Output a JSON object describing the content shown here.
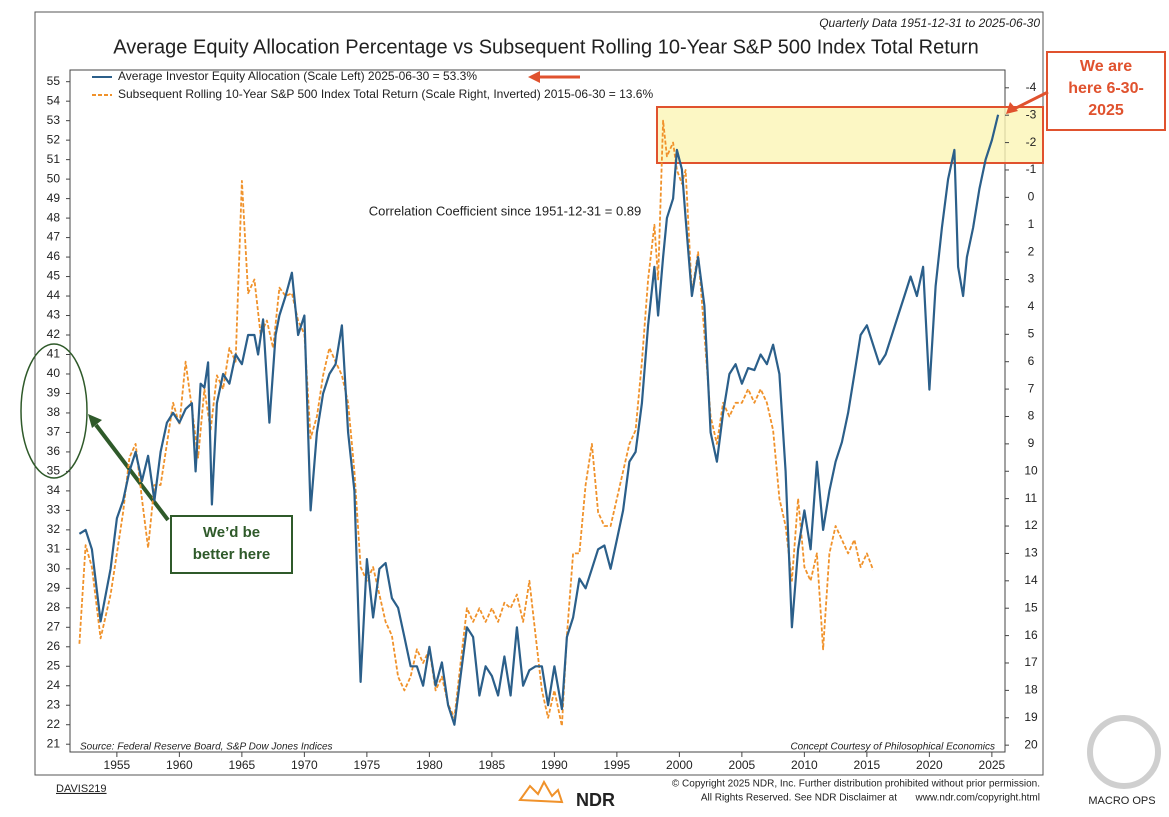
{
  "chart_data": {
    "type": "line",
    "title": "Average Equity Allocation Percentage vs Subsequent Rolling 10-Year S&P 500 Index Total Return",
    "subtitle": "Quarterly Data 1951-12-31 to 2025-06-30",
    "correlation_note": "Correlation Coefficient since 1951-12-31 = 0.89",
    "source": "Source:  Federal Reserve Board, S&P Dow Jones Indices",
    "credit": "Concept Courtesy of Philosophical Economics",
    "copyright": "© Copyright 2025 NDR, Inc. Further distribution prohibited without prior permission.",
    "disclaimer": "All Rights Reserved. See NDR Disclaimer at",
    "disclaimer_link": "www.ndr.com/copyright.html",
    "chart_id": "DAVIS219",
    "logo": "NDR",
    "watermark": "MACRO OPS",
    "annotations": [
      "We are here 6-30-2025",
      "We’d be better here"
    ],
    "xlim": [
      1951.25,
      2026.05
    ],
    "xticks": [
      1955,
      1960,
      1965,
      1970,
      1975,
      1980,
      1985,
      1990,
      1995,
      2000,
      2005,
      2010,
      2015,
      2020,
      2025
    ],
    "ylim": [
      20.6,
      55.6
    ],
    "yticks": [
      21,
      22,
      23,
      24,
      25,
      26,
      27,
      28,
      29,
      30,
      31,
      32,
      33,
      34,
      35,
      36,
      37,
      38,
      39,
      40,
      41,
      42,
      43,
      44,
      45,
      46,
      47,
      48,
      49,
      50,
      51,
      52,
      53,
      54,
      55
    ],
    "y2lim": [
      -4.65,
      20.25
    ],
    "y2_inverted": true,
    "y2ticks": [
      -4,
      -3,
      -2,
      -1,
      0,
      1,
      2,
      3,
      4,
      5,
      6,
      7,
      8,
      9,
      10,
      11,
      12,
      13,
      14,
      15,
      16,
      17,
      18,
      19,
      20
    ],
    "series": [
      {
        "name": "Average Investor Equity Allocation (Scale Left) 2025-06-30 = 53.3%",
        "color": "#2b5f8a",
        "dashed": false,
        "x": [
          1952,
          1952.5,
          1953,
          1953.7,
          1954.5,
          1955,
          1955.5,
          1956,
          1956.5,
          1957,
          1957.5,
          1958,
          1958.5,
          1959,
          1959.5,
          1960,
          1960.5,
          1961,
          1961.3,
          1961.7,
          1962,
          1962.3,
          1962.6,
          1963,
          1963.5,
          1964,
          1964.5,
          1965,
          1965.5,
          1966,
          1966.3,
          1966.7,
          1967.2,
          1967.7,
          1968,
          1968.5,
          1969,
          1969.5,
          1970,
          1970.5,
          1971,
          1971.5,
          1972,
          1972.5,
          1973,
          1973.5,
          1974,
          1974.5,
          1975,
          1975.5,
          1976,
          1976.5,
          1977,
          1977.5,
          1978,
          1978.5,
          1979,
          1979.5,
          1980,
          1980.5,
          1981,
          1981.5,
          1982,
          1982.5,
          1983,
          1983.5,
          1984,
          1984.5,
          1985,
          1985.5,
          1986,
          1986.5,
          1987,
          1987.5,
          1988,
          1988.5,
          1989,
          1989.5,
          1990,
          1990.6,
          1991,
          1991.5,
          1992,
          1992.5,
          1993,
          1993.5,
          1994,
          1994.5,
          1995,
          1995.5,
          1996,
          1996.5,
          1997,
          1997.5,
          1998,
          1998.3,
          1998.7,
          1999,
          1999.5,
          1999.8,
          2000.2,
          2000.5,
          2001,
          2001.5,
          2002,
          2002.5,
          2003,
          2003.5,
          2004,
          2004.5,
          2005,
          2005.5,
          2006,
          2006.5,
          2007,
          2007.5,
          2008,
          2008.5,
          2009,
          2009.5,
          2010,
          2010.5,
          2011,
          2011.5,
          2012,
          2012.5,
          2013,
          2013.5,
          2014,
          2014.5,
          2015,
          2015.5,
          2016,
          2016.5,
          2017,
          2017.5,
          2018,
          2018.5,
          2019,
          2019.5,
          2020,
          2020.5,
          2021,
          2021.5,
          2022,
          2022.3,
          2022.7,
          2023,
          2023.5,
          2024,
          2024.5,
          2025,
          2025.5
        ],
        "values": [
          31.8,
          32,
          31,
          27.3,
          30,
          32.6,
          33.5,
          35,
          36,
          34.5,
          35.8,
          33.5,
          36,
          37.5,
          38,
          37.5,
          38.2,
          38.5,
          35,
          39.5,
          39.3,
          40.6,
          33.3,
          38.5,
          40,
          39.5,
          41,
          40.5,
          42,
          42,
          41,
          42.8,
          37.5,
          42,
          43,
          44,
          45.2,
          42,
          43,
          33,
          37,
          39,
          40,
          40.5,
          42.5,
          37,
          34,
          24.2,
          30.5,
          27.5,
          30,
          30.3,
          28.5,
          28,
          26.5,
          25,
          25,
          24,
          26,
          24,
          25.2,
          23,
          22,
          24.5,
          27,
          26.5,
          23.5,
          25,
          24.5,
          23.5,
          25.5,
          23.5,
          27,
          24,
          24.8,
          25,
          25,
          23,
          25,
          22.8,
          26.5,
          27.5,
          29.5,
          29,
          30,
          31,
          31.2,
          30,
          31.5,
          33,
          35.5,
          36,
          38.5,
          42.5,
          45.5,
          43,
          46,
          48,
          49,
          51.5,
          50.5,
          48,
          44,
          46,
          43.5,
          37,
          35.5,
          38,
          40,
          40.5,
          39.5,
          40.3,
          40.2,
          41,
          40.5,
          41.5,
          40,
          35,
          27,
          31,
          33,
          31,
          35.5,
          32,
          34,
          35.5,
          36.5,
          38,
          40,
          42,
          42.5,
          41.5,
          40.5,
          41,
          42,
          43,
          44,
          45,
          44,
          45.5,
          39.2,
          44.5,
          47.5,
          50,
          51.5,
          45.5,
          44,
          46,
          47.5,
          49.5,
          51,
          52,
          53.3
        ]
      },
      {
        "name": "Subsequent Rolling 10-Year S&P 500 Index Total Return (Scale Right, Inverted) 2015-06-30 = 13.6%",
        "color": "#f0922b",
        "dashed": true,
        "axis": "y2",
        "x": [
          1952,
          1952.5,
          1953,
          1953.7,
          1954.5,
          1955,
          1955.5,
          1956,
          1956.5,
          1957,
          1957.5,
          1958,
          1958.5,
          1959,
          1959.5,
          1960,
          1960.5,
          1961,
          1961.5,
          1962,
          1962.5,
          1963,
          1963.5,
          1964,
          1964.5,
          1965,
          1965.5,
          1966,
          1966.5,
          1967,
          1967.5,
          1968,
          1968.5,
          1969,
          1969.5,
          1970,
          1970.5,
          1971,
          1971.5,
          1972,
          1972.5,
          1973,
          1973.5,
          1974,
          1974.5,
          1975,
          1975.5,
          1976,
          1976.5,
          1977,
          1977.5,
          1978,
          1978.5,
          1979,
          1979.5,
          1980,
          1980.5,
          1981,
          1981.5,
          1982,
          1982.5,
          1983,
          1983.5,
          1984,
          1984.5,
          1985,
          1985.5,
          1986,
          1986.5,
          1987,
          1987.5,
          1988,
          1988.5,
          1989,
          1989.5,
          1990,
          1990.6,
          1991,
          1991.5,
          1992,
          1992.5,
          1993,
          1993.5,
          1994,
          1994.5,
          1995,
          1995.5,
          1996,
          1996.5,
          1997,
          1997.5,
          1998,
          1998.3,
          1998.7,
          1999,
          1999.5,
          1999.8,
          2000.2,
          2000.5,
          2001,
          2001.5,
          2002,
          2002.5,
          2003,
          2003.5,
          2004,
          2004.5,
          2005,
          2005.5,
          2006,
          2006.5,
          2007,
          2007.5,
          2008,
          2008.5,
          2009,
          2009.5,
          2010,
          2010.5,
          2011,
          2011.5,
          2012,
          2012.5,
          2013,
          2013.5,
          2014,
          2014.5,
          2015,
          2015.5
        ],
        "values": [
          16.3,
          12.7,
          13.5,
          16.1,
          14.5,
          13,
          11.5,
          9.5,
          9,
          11,
          12.8,
          10.5,
          10.5,
          9,
          7.5,
          8.3,
          6,
          7.7,
          9.5,
          7,
          8.5,
          6.5,
          7,
          5.5,
          6,
          -0.6,
          3.5,
          3,
          5,
          4.5,
          5.5,
          3.3,
          3.6,
          3.5,
          4.5,
          5,
          8.8,
          8,
          6.5,
          5.5,
          6,
          6.5,
          7.5,
          10,
          13.5,
          14,
          13.5,
          14.5,
          15.5,
          16,
          17.5,
          18,
          17.5,
          16.5,
          17,
          16.5,
          18,
          17.5,
          18.5,
          19,
          17,
          15,
          15.5,
          15,
          15.5,
          15,
          15.5,
          14.8,
          15,
          14.5,
          15.5,
          14,
          16,
          18,
          19,
          18,
          19.3,
          16,
          13,
          13,
          10.5,
          9,
          11.5,
          12,
          12,
          11,
          10,
          9,
          8.5,
          6,
          3,
          1,
          3,
          -2.8,
          -1.5,
          -2,
          -1,
          -0.5,
          -1,
          3.5,
          2,
          5,
          8,
          9,
          7.5,
          8,
          7.5,
          7.5,
          7,
          7.5,
          7,
          7.5,
          8.5,
          11,
          12,
          14,
          11,
          13.5,
          14,
          13,
          16.5,
          13,
          12,
          12.5,
          13,
          12.5,
          13.5,
          13,
          13.6
        ]
      }
    ]
  }
}
